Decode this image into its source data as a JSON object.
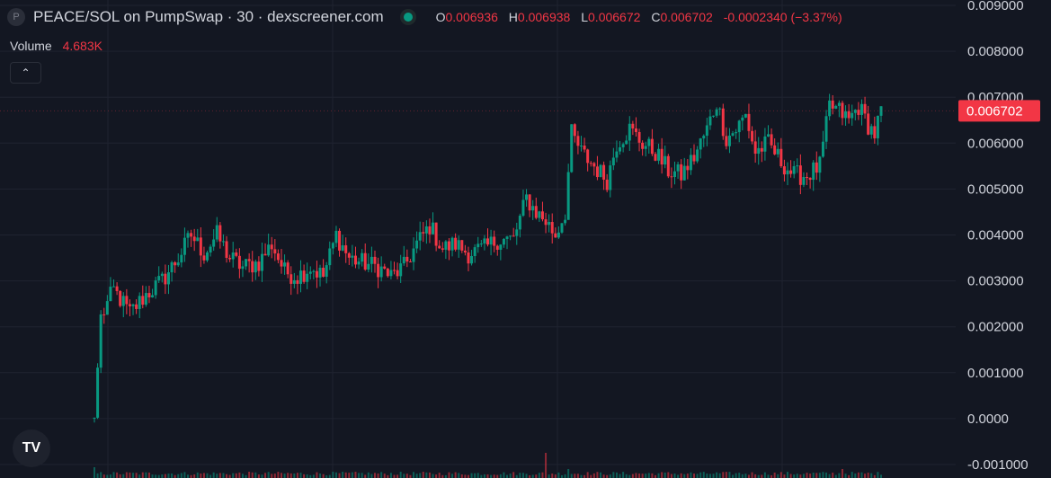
{
  "header": {
    "logo_letter": "P",
    "title": "PEACE/SOL on PumpSwap · 30 · dexscreener.com",
    "ohlc": {
      "o_label": "O",
      "o": "0.006936",
      "h_label": "H",
      "h": "0.006938",
      "l_label": "L",
      "l": "0.006672",
      "c_label": "C",
      "c": "0.006702",
      "change": "-0.0002340 (−3.37%)"
    }
  },
  "volume": {
    "label": "Volume",
    "value": "4.683K"
  },
  "logo": "TV",
  "colors": {
    "up": "#089981",
    "down": "#f23645",
    "background": "#131722",
    "grid": "#1f2330",
    "axis_text": "#d1d4dc"
  },
  "chart_data": {
    "type": "candlestick",
    "ylim": [
      -0.001,
      0.009
    ],
    "yticks": [
      "-0.001000",
      "0.0000",
      "0.001000",
      "0.002000",
      "0.003000",
      "0.004000",
      "0.005000",
      "0.006000",
      "0.007000",
      "0.008000",
      "0.009000"
    ],
    "last_price": "0.006702",
    "anchors": [
      [
        0,
        2e-05
      ],
      [
        2,
        0.0022
      ],
      [
        6,
        0.0028
      ],
      [
        11,
        0.0023
      ],
      [
        16,
        0.0027
      ],
      [
        21,
        0.003
      ],
      [
        26,
        0.0035
      ],
      [
        30,
        0.004
      ],
      [
        34,
        0.0036
      ],
      [
        38,
        0.004
      ],
      [
        42,
        0.0035
      ],
      [
        46,
        0.0033
      ],
      [
        51,
        0.0034
      ],
      [
        55,
        0.0038
      ],
      [
        59,
        0.0032
      ],
      [
        63,
        0.0031
      ],
      [
        67,
        0.0033
      ],
      [
        71,
        0.0031
      ],
      [
        75,
        0.004
      ],
      [
        79,
        0.0035
      ],
      [
        83,
        0.0034
      ],
      [
        88,
        0.0033
      ],
      [
        92,
        0.0031
      ],
      [
        96,
        0.0033
      ],
      [
        100,
        0.0038
      ],
      [
        104,
        0.0042
      ],
      [
        108,
        0.0037
      ],
      [
        112,
        0.0038
      ],
      [
        116,
        0.0036
      ],
      [
        121,
        0.0037
      ],
      [
        125,
        0.0039
      ],
      [
        130,
        0.0039
      ],
      [
        134,
        0.0048
      ],
      [
        137,
        0.0045
      ],
      [
        140,
        0.0043
      ],
      [
        143,
        0.004
      ],
      [
        146,
        0.0045
      ],
      [
        148,
        0.0062
      ],
      [
        151,
        0.0058
      ],
      [
        155,
        0.0055
      ],
      [
        159,
        0.0052
      ],
      [
        162,
        0.006
      ],
      [
        166,
        0.0063
      ],
      [
        170,
        0.006
      ],
      [
        174,
        0.0058
      ],
      [
        178,
        0.0054
      ],
      [
        182,
        0.0053
      ],
      [
        186,
        0.0057
      ],
      [
        190,
        0.0063
      ],
      [
        193,
        0.0069
      ],
      [
        196,
        0.0061
      ],
      [
        199,
        0.0063
      ],
      [
        202,
        0.0066
      ],
      [
        205,
        0.0058
      ],
      [
        209,
        0.006
      ],
      [
        213,
        0.0056
      ],
      [
        217,
        0.0053
      ],
      [
        221,
        0.0053
      ],
      [
        225,
        0.0055
      ],
      [
        228,
        0.0068
      ],
      [
        231,
        0.0067
      ],
      [
        234,
        0.0065
      ],
      [
        237,
        0.0068
      ],
      [
        240,
        0.0064
      ],
      [
        242,
        0.0062
      ],
      [
        244,
        0.0067
      ]
    ],
    "candle_count": 245
  }
}
